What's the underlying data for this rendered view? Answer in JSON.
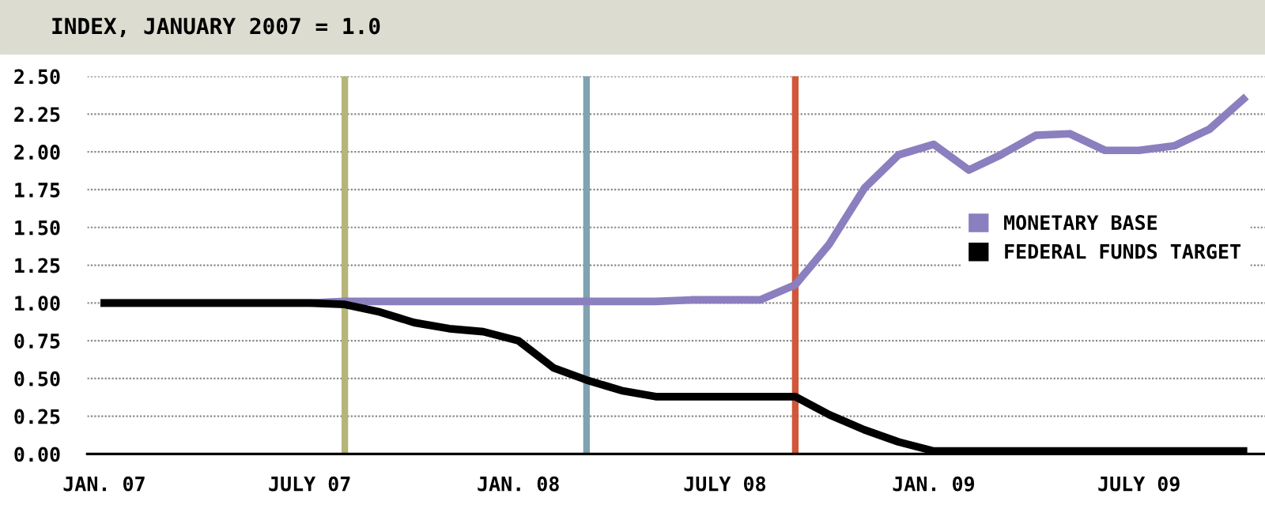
{
  "chart_data": {
    "type": "line",
    "title": "INDEX, JANUARY 2007 = 1.0",
    "x": [
      "2007-01",
      "2007-02",
      "2007-03",
      "2007-04",
      "2007-05",
      "2007-06",
      "2007-07",
      "2007-08",
      "2007-09",
      "2007-10",
      "2007-11",
      "2007-12",
      "2008-01",
      "2008-02",
      "2008-03",
      "2008-04",
      "2008-05",
      "2008-06",
      "2008-07",
      "2008-08",
      "2008-09",
      "2008-10",
      "2008-11",
      "2008-12",
      "2009-01",
      "2009-02",
      "2009-03",
      "2009-04",
      "2009-05",
      "2009-06",
      "2009-07",
      "2009-08",
      "2009-09",
      "2009-10"
    ],
    "series": [
      {
        "name": "MONETARY BASE",
        "color": "#8b7fbf",
        "values": [
          1.0,
          1.0,
          1.0,
          1.0,
          1.0,
          1.0,
          1.0,
          1.01,
          1.01,
          1.01,
          1.01,
          1.01,
          1.01,
          1.01,
          1.01,
          1.01,
          1.01,
          1.02,
          1.02,
          1.02,
          1.12,
          1.39,
          1.76,
          1.98,
          2.05,
          1.88,
          1.98,
          2.11,
          2.12,
          2.01,
          2.01,
          2.04,
          2.15,
          2.35
        ]
      },
      {
        "name": "FEDERAL FUNDS TARGET",
        "color": "#000000",
        "values": [
          1.0,
          1.0,
          1.0,
          1.0,
          1.0,
          1.0,
          1.0,
          0.99,
          0.94,
          0.87,
          0.83,
          0.81,
          0.75,
          0.57,
          0.49,
          0.42,
          0.38,
          0.38,
          0.38,
          0.38,
          0.38,
          0.26,
          0.16,
          0.08,
          0.02,
          0.02,
          0.02,
          0.02,
          0.02,
          0.02,
          0.02,
          0.02,
          0.02,
          0.02
        ]
      }
    ],
    "xlim": [
      "2006-12-17",
      "2009-10-20"
    ],
    "xticks": [
      {
        "value": "2007-01",
        "label": "JAN. 07"
      },
      {
        "value": "2007-07",
        "label": "JULY 07"
      },
      {
        "value": "2008-01",
        "label": "JAN. 08"
      },
      {
        "value": "2008-07",
        "label": "JULY 08"
      },
      {
        "value": "2009-01",
        "label": "JAN. 09"
      },
      {
        "value": "2009-07",
        "label": "JULY 09"
      }
    ],
    "ylim": [
      0,
      2.5
    ],
    "yticks": [
      {
        "value": 0,
        "label": "0.00"
      },
      {
        "value": 0.25,
        "label": "0.25"
      },
      {
        "value": 0.5,
        "label": "0.50"
      },
      {
        "value": 0.75,
        "label": "0.75"
      },
      {
        "value": 1,
        "label": "1.00"
      },
      {
        "value": 1.25,
        "label": "1.25"
      },
      {
        "value": 1.5,
        "label": "1.50"
      },
      {
        "value": 1.75,
        "label": "1.75"
      },
      {
        "value": 2,
        "label": "2.00"
      },
      {
        "value": 2.25,
        "label": "2.25"
      },
      {
        "value": 2.5,
        "label": "2.50"
      }
    ],
    "ref_lines": [
      {
        "axis": "x",
        "value": "2007-08",
        "color": "#b5b57a"
      },
      {
        "axis": "x",
        "value": "2008-03",
        "color": "#7fa3b0"
      },
      {
        "axis": "x",
        "value": "2008-09",
        "color": "#d0573a"
      }
    ],
    "grid": "y",
    "legend": "right",
    "marker": "none",
    "line_style": "solid"
  }
}
